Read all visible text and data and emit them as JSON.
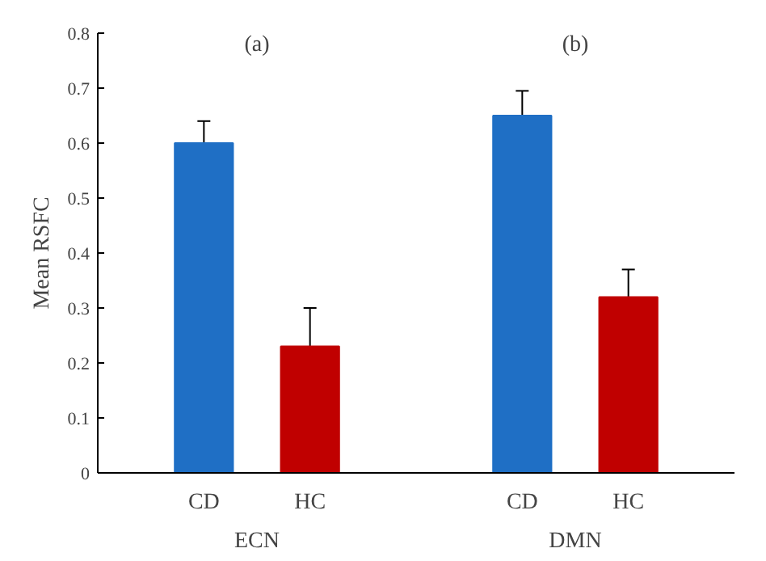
{
  "chart_data": {
    "type": "bar",
    "ylabel": "Mean RSFC",
    "categories": [
      "CD",
      "HC",
      "CD",
      "HC"
    ],
    "values": [
      0.6,
      0.23,
      0.65,
      0.32
    ],
    "errors": [
      0.04,
      0.07,
      0.045,
      0.05
    ],
    "colors": [
      "#1f6fc5",
      "#c00000",
      "#1f6fc5",
      "#c00000"
    ],
    "ylim": [
      0,
      0.8
    ],
    "yticks": [
      0,
      0.1,
      0.2,
      0.3,
      0.4,
      0.5,
      0.6,
      0.7,
      0.8
    ],
    "annotations": [
      "(a)",
      "(b)",
      "ECN",
      "DMN"
    ],
    "grid": false
  }
}
